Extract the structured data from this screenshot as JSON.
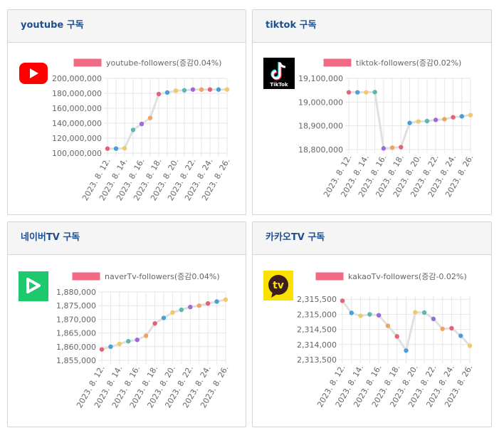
{
  "panels": [
    {
      "id": "youtube",
      "title": "youtube 구독",
      "logo": "youtube-logo-icon"
    },
    {
      "id": "tiktok",
      "title": "tiktok 구독",
      "logo": "tiktok-logo-icon",
      "logo_text": "TikTok"
    },
    {
      "id": "naver",
      "title": "네이버TV 구독",
      "logo": "navertv-logo-icon"
    },
    {
      "id": "kakao",
      "title": "카카오TV 구독",
      "logo": "kakaotv-logo-icon",
      "logo_text": "tv"
    }
  ],
  "point_colors": [
    "#e06377",
    "#4a9fd6",
    "#f0c96a",
    "#5bb8b0",
    "#9b6bd8",
    "#f0a464"
  ],
  "line_color": "#e0e0e0",
  "legend_color": "#f06a84",
  "chart_data": [
    {
      "type": "line",
      "legend": "youtube-followers(증감0.04%)",
      "categories": [
        "2023. 8. 12.",
        "2023. 8. 13.",
        "2023. 8. 14.",
        "2023. 8. 15.",
        "2023. 8. 16.",
        "2023. 8. 17.",
        "2023. 8. 18.",
        "2023. 8. 19.",
        "2023. 8. 20.",
        "2023. 8. 21.",
        "2023. 8. 22.",
        "2023. 8. 23.",
        "2023. 8. 24.",
        "2023. 8. 25.",
        "2023. 8. 26."
      ],
      "tick_labels": [
        "2023. 8. 12.",
        "2023. 8. 14.",
        "2023. 8. 16.",
        "2023. 8. 18.",
        "2023. 8. 20.",
        "2023. 8. 22.",
        "2023. 8. 24.",
        "2023. 8. 26."
      ],
      "values": [
        106000000,
        106000000,
        106500000,
        131000000,
        139000000,
        147000000,
        179000000,
        181000000,
        183500000,
        184000000,
        185000000,
        185000000,
        185000000,
        185000000,
        185000000
      ],
      "ylim": [
        100000000,
        200000000
      ],
      "yticks": [
        "200,000,000",
        "180,000,000",
        "160,000,000",
        "140,000,000",
        "120,000,000",
        "100,000,000"
      ],
      "ytick_values": [
        200000000,
        180000000,
        160000000,
        140000000,
        120000000,
        100000000
      ]
    },
    {
      "type": "line",
      "legend": "tiktok-followers(증감0.02%)",
      "categories": [
        "2023. 8. 12.",
        "2023. 8. 13.",
        "2023. 8. 14.",
        "2023. 8. 15.",
        "2023. 8. 16.",
        "2023. 8. 17.",
        "2023. 8. 18.",
        "2023. 8. 19.",
        "2023. 8. 20.",
        "2023. 8. 21.",
        "2023. 8. 22.",
        "2023. 8. 23.",
        "2023. 8. 24.",
        "2023. 8. 25.",
        "2023. 8. 26."
      ],
      "tick_labels": [
        "2023. 8. 12.",
        "2023. 8. 14.",
        "2023. 8. 16.",
        "2023. 8. 18.",
        "2023. 8. 20.",
        "2023. 8. 22.",
        "2023. 8. 24.",
        "2023. 8. 26."
      ],
      "values": [
        19041000,
        19041000,
        19041000,
        19042000,
        18805000,
        18808000,
        18810000,
        18912000,
        18918000,
        18920000,
        18925000,
        18928000,
        18936000,
        18940000,
        18945000
      ],
      "ylim": [
        18800000,
        19100000
      ],
      "yticks": [
        "19,100,000",
        "19,000,000",
        "18,900,000",
        "18,800,000"
      ],
      "ytick_values": [
        19100000,
        19000000,
        18900000,
        18800000
      ]
    },
    {
      "type": "line",
      "legend": "naverTv-followers(증감0.04%)",
      "categories": [
        "2023. 8. 12.",
        "2023. 8. 13.",
        "2023. 8. 14.",
        "2023. 8. 15.",
        "2023. 8. 16.",
        "2023. 8. 17.",
        "2023. 8. 18.",
        "2023. 8. 19.",
        "2023. 8. 20.",
        "2023. 8. 21.",
        "2023. 8. 22.",
        "2023. 8. 23.",
        "2023. 8. 24.",
        "2023. 8. 25.",
        "2023. 8. 26."
      ],
      "tick_labels": [
        "2023. 8. 12.",
        "2023. 8. 14.",
        "2023. 8. 16.",
        "2023. 8. 18.",
        "2023. 8. 20.",
        "2023. 8. 22.",
        "2023. 8. 24.",
        "2023. 8. 26."
      ],
      "values": [
        1859000,
        1860000,
        1861000,
        1862000,
        1862500,
        1864000,
        1868500,
        1870500,
        1872500,
        1873500,
        1874500,
        1875000,
        1875800,
        1876500,
        1877200
      ],
      "ylim": [
        1855000,
        1880000
      ],
      "yticks": [
        "1,880,000",
        "1,875,000",
        "1,870,000",
        "1,865,000",
        "1,860,000",
        "1,855,000"
      ],
      "ytick_values": [
        1880000,
        1875000,
        1870000,
        1865000,
        1860000,
        1855000
      ]
    },
    {
      "type": "line",
      "legend": "kakaoTv-followers(증감-0.02%)",
      "categories": [
        "2023. 8. 12.",
        "2023. 8. 13.",
        "2023. 8. 14.",
        "2023. 8. 15.",
        "2023. 8. 16.",
        "2023. 8. 17.",
        "2023. 8. 18.",
        "2023. 8. 19.",
        "2023. 8. 20.",
        "2023. 8. 21.",
        "2023. 8. 22.",
        "2023. 8. 23.",
        "2023. 8. 24.",
        "2023. 8. 25.",
        "2023. 8. 26."
      ],
      "tick_labels": [
        "2023. 8. 12.",
        "2023. 8. 14.",
        "2023. 8. 16.",
        "2023. 8. 18.",
        "2023. 8. 20.",
        "2023. 8. 22.",
        "2023. 8. 24.",
        "2023. 8. 26."
      ],
      "values": [
        2315450,
        2315050,
        2314950,
        2315000,
        2314970,
        2314620,
        2314270,
        2313800,
        2315070,
        2315060,
        2314850,
        2314520,
        2314540,
        2314290,
        2313960
      ],
      "ylim": [
        2313500,
        2315600
      ],
      "yticks": [
        "2,315,500",
        "2,315,000",
        "2,314,500",
        "2,314,000",
        "2,313,500"
      ],
      "ytick_values": [
        2315500,
        2315000,
        2314500,
        2314000,
        2313500
      ]
    }
  ]
}
